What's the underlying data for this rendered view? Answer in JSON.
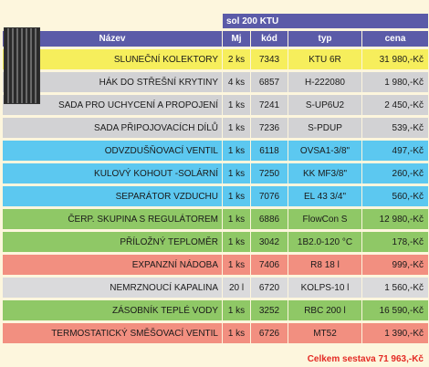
{
  "product_line": "sol 200 KTU",
  "columns": {
    "name": "Název",
    "qty": "Mj",
    "code": "kód",
    "type": "typ",
    "price": "cena"
  },
  "rows": [
    {
      "name": "SLUNEČNÍ KOLEKTORY",
      "qty": "2 ks",
      "code": "7343",
      "type": "KTU 6R",
      "price": "31 980,-Kč",
      "color": "#f6ee5c"
    },
    {
      "name": "HÁK DO STŘEŠNÍ KRYTINY",
      "qty": "4 ks",
      "code": "6857",
      "type": "H-222080",
      "price": "1 980,-Kč",
      "color": "#d2d2d4"
    },
    {
      "name": "SADA PRO UCHYCENÍ A PROPOJENÍ",
      "qty": "1 ks",
      "code": "7241",
      "type": "S-UP6U2",
      "price": "2 450,-Kč",
      "color": "#d2d2d4"
    },
    {
      "name": "SADA PŘIPOJOVACÍCH DÍLŮ",
      "qty": "1 ks",
      "code": "7236",
      "type": "S-PDUP",
      "price": "539,-Kč",
      "color": "#d2d2d4"
    },
    {
      "name": "ODVZDUŠŇOVACÍ VENTIL",
      "qty": "1 ks",
      "code": "6118",
      "type": "OVSA1-3/8\"",
      "price": "497,-Kč",
      "color": "#5cc8f0"
    },
    {
      "name": "KULOVÝ KOHOUT -SOLÁRNÍ",
      "qty": "1 ks",
      "code": "7250",
      "type": "KK MF3/8\"",
      "price": "260,-Kč",
      "color": "#5cc8f0"
    },
    {
      "name": "SEPARÁTOR VZDUCHU",
      "qty": "1 ks",
      "code": "7076",
      "type": "EL 43 3/4\"",
      "price": "560,-Kč",
      "color": "#5cc8f0"
    },
    {
      "name": "ČERP. SKUPINA S REGULÁTOREM",
      "qty": "1 ks",
      "code": "6886",
      "type": "FlowCon S",
      "price": "12 980,-Kč",
      "color": "#8fc866"
    },
    {
      "name": "PŘÍLOŽNÝ TEPLOMĚR",
      "qty": "1 ks",
      "code": "3042",
      "type": "1B2.0-120 °C",
      "price": "178,-Kč",
      "color": "#8fc866"
    },
    {
      "name": "EXPANZNÍ NÁDOBA",
      "qty": "1 ks",
      "code": "7406",
      "type": "R8 18 l",
      "price": "999,-Kč",
      "color": "#f28f80"
    },
    {
      "name": "NEMRZNOUCÍ KAPALINA",
      "qty": "20 l",
      "code": "6720",
      "type": "KOLPS-10 l",
      "price": "1 560,-Kč",
      "color": "#dadadc"
    },
    {
      "name": "ZÁSOBNÍK TEPLÉ VODY",
      "qty": "1 ks",
      "code": "3252",
      "type": "RBC 200 l",
      "price": "16 590,-Kč",
      "color": "#8fc866"
    },
    {
      "name": "TERMOSTATICKÝ SMĚŠOVACÍ VENTIL",
      "qty": "1 ks",
      "code": "6726",
      "type": "MT52",
      "price": "1 390,-Kč",
      "color": "#f28f80"
    }
  ],
  "total": "Celkem sestava 71 963,-Kč"
}
